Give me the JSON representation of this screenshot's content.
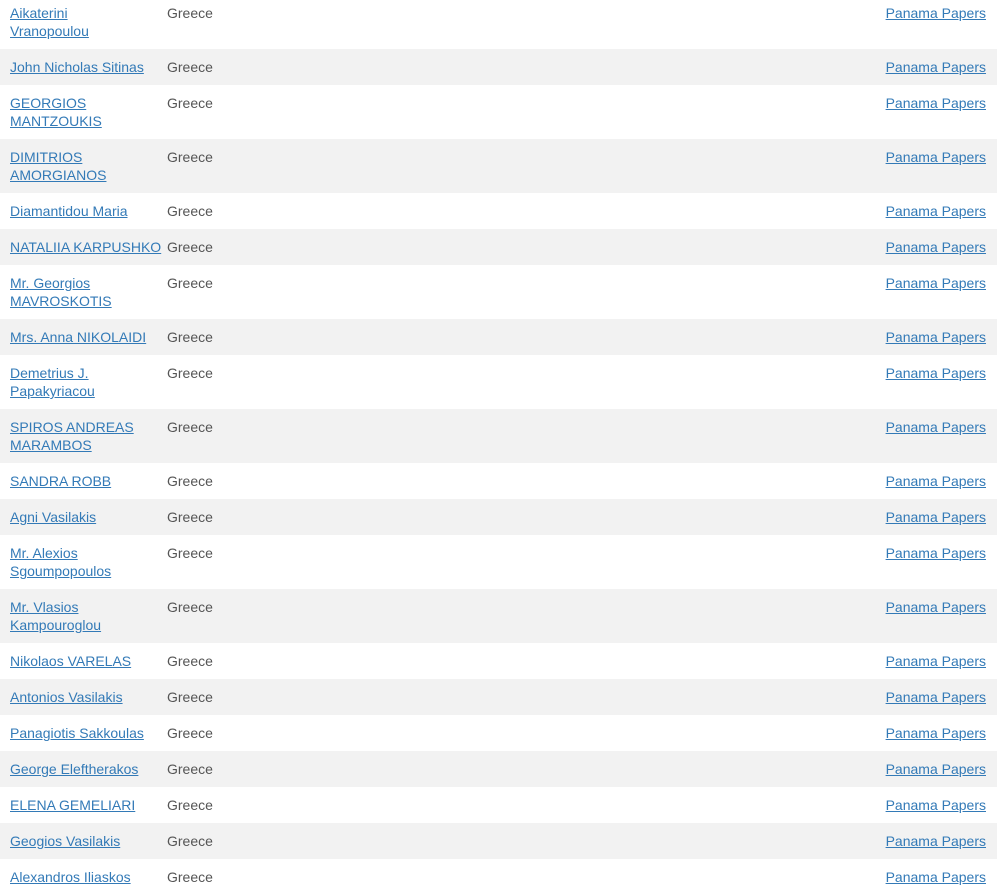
{
  "table": {
    "columns": [
      "name",
      "country",
      "data_source"
    ],
    "rows": [
      {
        "name": "Aikaterini\nVranopoulou",
        "country": "Greece",
        "source": "Panama Papers"
      },
      {
        "name": "John Nicholas Sitinas",
        "country": "Greece",
        "source": "Panama Papers"
      },
      {
        "name": "GEORGIOS\nMANTZOUKIS",
        "country": "Greece",
        "source": "Panama Papers"
      },
      {
        "name": "DIMITRIOS\nAMORGIANOS",
        "country": "Greece",
        "source": "Panama Papers"
      },
      {
        "name": "Diamantidou Maria",
        "country": "Greece",
        "source": "Panama Papers"
      },
      {
        "name": "NATALIIA KARPUSHKO",
        "country": "Greece",
        "source": "Panama Papers"
      },
      {
        "name": "Mr. Georgios\nMAVROSKOTIS",
        "country": "Greece",
        "source": "Panama Papers"
      },
      {
        "name": "Mrs. Anna NIKOLAIDI",
        "country": "Greece",
        "source": "Panama Papers"
      },
      {
        "name": "Demetrius J.\nPapakyriacou",
        "country": "Greece",
        "source": "Panama Papers"
      },
      {
        "name": "SPIROS ANDREAS\nMARAMBOS",
        "country": "Greece",
        "source": "Panama Papers"
      },
      {
        "name": "SANDRA ROBB",
        "country": "Greece",
        "source": "Panama Papers"
      },
      {
        "name": "Agni Vasilakis",
        "country": "Greece",
        "source": "Panama Papers"
      },
      {
        "name": "Mr. Alexios\nSgoumpopoulos",
        "country": "Greece",
        "source": "Panama Papers"
      },
      {
        "name": "Mr. Vlasios\nKampouroglou",
        "country": "Greece",
        "source": "Panama Papers"
      },
      {
        "name": "Nikolaos VARELAS",
        "country": "Greece",
        "source": "Panama Papers"
      },
      {
        "name": "Antonios Vasilakis",
        "country": "Greece",
        "source": "Panama Papers"
      },
      {
        "name": "Panagiotis Sakkoulas",
        "country": "Greece",
        "source": "Panama Papers"
      },
      {
        "name": "George Eleftherakos",
        "country": "Greece",
        "source": "Panama Papers"
      },
      {
        "name": "ELENA GEMELIARI",
        "country": "Greece",
        "source": "Panama Papers"
      },
      {
        "name": "Geogios Vasilakis",
        "country": "Greece",
        "source": "Panama Papers"
      },
      {
        "name": "Alexandros Iliaskos",
        "country": "Greece",
        "source": "Panama Papers"
      }
    ]
  },
  "colors": {
    "link_blue": "#337ab7",
    "row_stripe": "#f2f2f2",
    "country_text": "#555555"
  }
}
